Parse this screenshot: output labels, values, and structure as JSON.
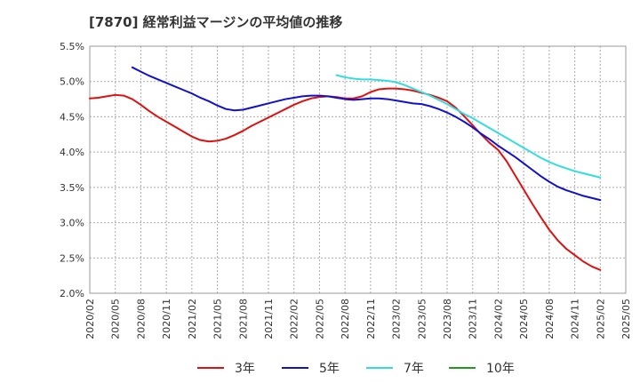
{
  "chart_data": {
    "type": "line",
    "title": "[7870]  経常利益マージンの平均値の推移",
    "xlabel": "",
    "ylabel": "",
    "ylim": [
      2.0,
      5.5
    ],
    "y_unit": "%",
    "yticks": [
      "5.5%",
      "5.0%",
      "4.5%",
      "4.0%",
      "3.5%",
      "3.0%",
      "2.5%",
      "2.0%"
    ],
    "xticks": [
      "2020/02",
      "2020/05",
      "2020/08",
      "2020/11",
      "2021/02",
      "2021/05",
      "2021/08",
      "2021/11",
      "2022/02",
      "2022/05",
      "2022/08",
      "2022/11",
      "2023/02",
      "2023/05",
      "2023/08",
      "2023/11",
      "2024/02",
      "2024/05",
      "2024/08",
      "2024/11",
      "2025/02",
      "2025/05"
    ],
    "grid": true,
    "legend_position": "bottom",
    "series": [
      {
        "name": "3年",
        "color": "#dd1111",
        "points": [
          [
            "2020/02",
            4.76
          ],
          [
            "2020/03",
            4.77
          ],
          [
            "2020/04",
            4.79
          ],
          [
            "2020/05",
            4.81
          ],
          [
            "2020/06",
            4.8
          ],
          [
            "2020/07",
            4.75
          ],
          [
            "2020/08",
            4.67
          ],
          [
            "2020/09",
            4.58
          ],
          [
            "2020/10",
            4.5
          ],
          [
            "2020/11",
            4.43
          ],
          [
            "2020/12",
            4.36
          ],
          [
            "2021/01",
            4.29
          ],
          [
            "2021/02",
            4.22
          ],
          [
            "2021/03",
            4.17
          ],
          [
            "2021/04",
            4.15
          ],
          [
            "2021/05",
            4.16
          ],
          [
            "2021/06",
            4.19
          ],
          [
            "2021/07",
            4.24
          ],
          [
            "2021/08",
            4.3
          ],
          [
            "2021/09",
            4.37
          ],
          [
            "2021/10",
            4.43
          ],
          [
            "2021/11",
            4.49
          ],
          [
            "2021/12",
            4.55
          ],
          [
            "2022/01",
            4.61
          ],
          [
            "2022/02",
            4.67
          ],
          [
            "2022/03",
            4.72
          ],
          [
            "2022/04",
            4.76
          ],
          [
            "2022/05",
            4.78
          ],
          [
            "2022/06",
            4.79
          ],
          [
            "2022/07",
            4.78
          ],
          [
            "2022/08",
            4.76
          ],
          [
            "2022/09",
            4.76
          ],
          [
            "2022/10",
            4.79
          ],
          [
            "2022/11",
            4.85
          ],
          [
            "2022/12",
            4.89
          ],
          [
            "2023/01",
            4.9
          ],
          [
            "2023/02",
            4.9
          ],
          [
            "2023/03",
            4.89
          ],
          [
            "2023/04",
            4.87
          ],
          [
            "2023/05",
            4.84
          ],
          [
            "2023/06",
            4.81
          ],
          [
            "2023/07",
            4.77
          ],
          [
            "2023/08",
            4.72
          ],
          [
            "2023/09",
            4.63
          ],
          [
            "2023/10",
            4.51
          ],
          [
            "2023/11",
            4.38
          ],
          [
            "2023/12",
            4.25
          ],
          [
            "2024/01",
            4.13
          ],
          [
            "2024/02",
            4.03
          ],
          [
            "2024/03",
            3.87
          ],
          [
            "2024/04",
            3.67
          ],
          [
            "2024/05",
            3.47
          ],
          [
            "2024/06",
            3.27
          ],
          [
            "2024/07",
            3.08
          ],
          [
            "2024/08",
            2.9
          ],
          [
            "2024/09",
            2.75
          ],
          [
            "2024/10",
            2.63
          ],
          [
            "2024/11",
            2.54
          ],
          [
            "2024/12",
            2.45
          ],
          [
            "2025/01",
            2.38
          ],
          [
            "2025/02",
            2.33
          ]
        ]
      },
      {
        "name": "5年",
        "color": "#1111cc",
        "points": [
          [
            "2020/07",
            5.2
          ],
          [
            "2020/08",
            5.14
          ],
          [
            "2020/09",
            5.08
          ],
          [
            "2020/10",
            5.03
          ],
          [
            "2020/11",
            4.98
          ],
          [
            "2020/12",
            4.93
          ],
          [
            "2021/01",
            4.88
          ],
          [
            "2021/02",
            4.83
          ],
          [
            "2021/03",
            4.77
          ],
          [
            "2021/04",
            4.72
          ],
          [
            "2021/05",
            4.66
          ],
          [
            "2021/06",
            4.61
          ],
          [
            "2021/07",
            4.59
          ],
          [
            "2021/08",
            4.6
          ],
          [
            "2021/09",
            4.63
          ],
          [
            "2021/10",
            4.66
          ],
          [
            "2021/11",
            4.69
          ],
          [
            "2021/12",
            4.72
          ],
          [
            "2022/01",
            4.75
          ],
          [
            "2022/02",
            4.77
          ],
          [
            "2022/03",
            4.79
          ],
          [
            "2022/04",
            4.8
          ],
          [
            "2022/05",
            4.8
          ],
          [
            "2022/06",
            4.79
          ],
          [
            "2022/07",
            4.77
          ],
          [
            "2022/08",
            4.75
          ],
          [
            "2022/09",
            4.74
          ],
          [
            "2022/10",
            4.75
          ],
          [
            "2022/11",
            4.76
          ],
          [
            "2022/12",
            4.76
          ],
          [
            "2023/01",
            4.75
          ],
          [
            "2023/02",
            4.73
          ],
          [
            "2023/03",
            4.71
          ],
          [
            "2023/04",
            4.69
          ],
          [
            "2023/05",
            4.68
          ],
          [
            "2023/06",
            4.65
          ],
          [
            "2023/07",
            4.61
          ],
          [
            "2023/08",
            4.56
          ],
          [
            "2023/09",
            4.5
          ],
          [
            "2023/10",
            4.43
          ],
          [
            "2023/11",
            4.35
          ],
          [
            "2023/12",
            4.26
          ],
          [
            "2024/01",
            4.18
          ],
          [
            "2024/02",
            4.09
          ],
          [
            "2024/03",
            4.01
          ],
          [
            "2024/04",
            3.93
          ],
          [
            "2024/05",
            3.84
          ],
          [
            "2024/06",
            3.75
          ],
          [
            "2024/07",
            3.66
          ],
          [
            "2024/08",
            3.58
          ],
          [
            "2024/09",
            3.51
          ],
          [
            "2024/10",
            3.46
          ],
          [
            "2024/11",
            3.42
          ],
          [
            "2024/12",
            3.38
          ],
          [
            "2025/01",
            3.35
          ],
          [
            "2025/02",
            3.32
          ]
        ]
      },
      {
        "name": "7年",
        "color": "#33dddd",
        "points": [
          [
            "2022/07",
            5.09
          ],
          [
            "2022/08",
            5.06
          ],
          [
            "2022/09",
            5.04
          ],
          [
            "2022/10",
            5.03
          ],
          [
            "2022/11",
            5.03
          ],
          [
            "2022/12",
            5.02
          ],
          [
            "2023/01",
            5.01
          ],
          [
            "2023/02",
            4.99
          ],
          [
            "2023/03",
            4.95
          ],
          [
            "2023/04",
            4.9
          ],
          [
            "2023/05",
            4.85
          ],
          [
            "2023/06",
            4.8
          ],
          [
            "2023/07",
            4.74
          ],
          [
            "2023/08",
            4.68
          ],
          [
            "2023/09",
            4.61
          ],
          [
            "2023/10",
            4.54
          ],
          [
            "2023/11",
            4.48
          ],
          [
            "2023/12",
            4.41
          ],
          [
            "2024/01",
            4.34
          ],
          [
            "2024/02",
            4.27
          ],
          [
            "2024/03",
            4.2
          ],
          [
            "2024/04",
            4.13
          ],
          [
            "2024/05",
            4.06
          ],
          [
            "2024/06",
            3.99
          ],
          [
            "2024/07",
            3.92
          ],
          [
            "2024/08",
            3.86
          ],
          [
            "2024/09",
            3.81
          ],
          [
            "2024/10",
            3.77
          ],
          [
            "2024/11",
            3.73
          ],
          [
            "2024/12",
            3.7
          ],
          [
            "2025/01",
            3.67
          ],
          [
            "2025/02",
            3.64
          ]
        ]
      },
      {
        "name": "10年",
        "color": "#229922",
        "points": []
      }
    ]
  }
}
